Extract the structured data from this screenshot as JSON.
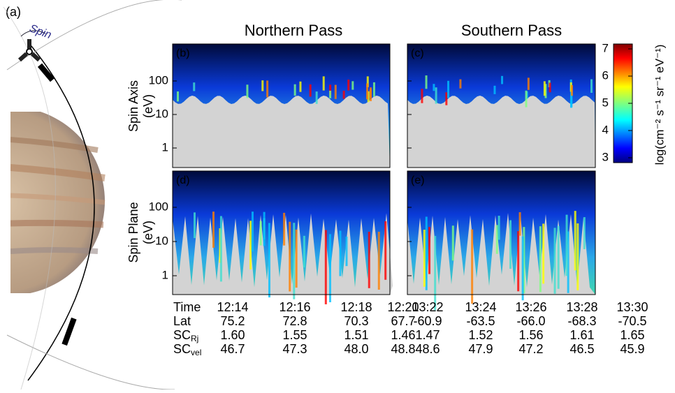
{
  "figure_label": "(a)",
  "spin_label": "Spin",
  "titles": [
    "Northern Pass",
    "Southern Pass"
  ],
  "panels": [
    {
      "label": "(b)"
    },
    {
      "label": "(c)"
    },
    {
      "label": "(d)"
    },
    {
      "label": "(e)"
    }
  ],
  "y_axis_labels": [
    {
      "line1": "Spin Axis",
      "line2": "(eV)"
    },
    {
      "line1": "Spin Plane",
      "line2": "(eV)"
    }
  ],
  "yticks": [
    1,
    10,
    100
  ],
  "log_scale": true,
  "colorbar": {
    "label": "log(cm⁻² s⁻¹ sr⁻¹ eV⁻¹)",
    "lim": [
      2.82,
      7.18
    ],
    "ticks": [
      3,
      4,
      5,
      6,
      7
    ]
  },
  "table": {
    "row_labels": [
      {
        "text": "Time"
      },
      {
        "text": "Lat"
      },
      {
        "text": "SC",
        "sub": "Rj"
      },
      {
        "text": "SC",
        "sub": "vel"
      }
    ],
    "north": [
      [
        "12:14",
        "75.2",
        "1.60",
        "46.7"
      ],
      [
        "12:16",
        "72.8",
        "1.55",
        "47.3"
      ],
      [
        "12:18",
        "70.3",
        "1.51",
        "48.0"
      ],
      [
        "12:20",
        "67.7",
        "1.46",
        "48.8"
      ]
    ],
    "south": [
      [
        "13:22",
        "-60.9",
        "1.47",
        "48.6"
      ],
      [
        "13:24",
        "-63.5",
        "1.52",
        "47.9"
      ],
      [
        "13:26",
        "-66.0",
        "1.56",
        "47.2"
      ],
      [
        "13:28",
        "-68.3",
        "1.61",
        "46.5"
      ],
      [
        "13:30",
        "-70.5",
        "1.65",
        "45.9"
      ]
    ]
  }
}
